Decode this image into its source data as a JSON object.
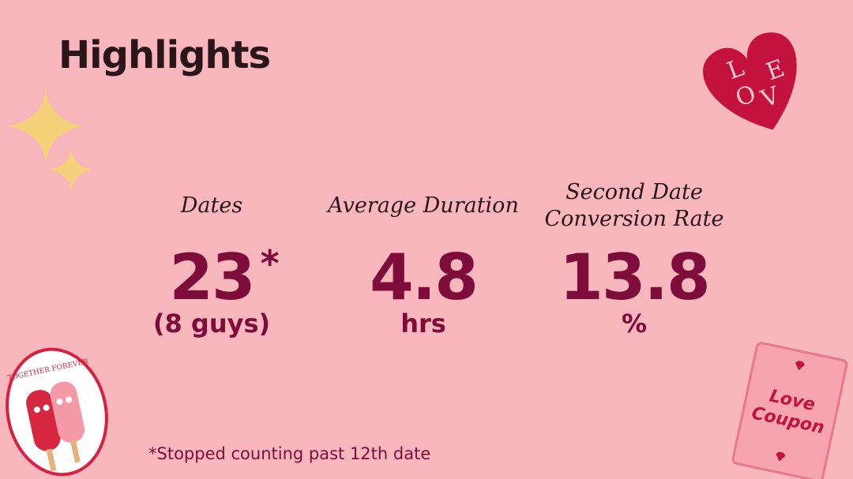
{
  "header": {
    "title": "Highlights"
  },
  "stats": [
    {
      "label": "Dates",
      "value": "23",
      "mark": "*",
      "sub": "(8 guys)"
    },
    {
      "label": "Average Duration",
      "value": "4.8",
      "sub": "hrs"
    },
    {
      "label": "Second Date Conversion Rate",
      "value": "13.8",
      "sub": "%"
    }
  ],
  "footnote": "*Stopped counting past 12th date",
  "stickers": {
    "love_letters": [
      "L",
      "O",
      "V",
      "E"
    ],
    "popsicle": "TOGETHER FOREVER",
    "coupon": [
      "Love",
      "Coupon"
    ]
  }
}
